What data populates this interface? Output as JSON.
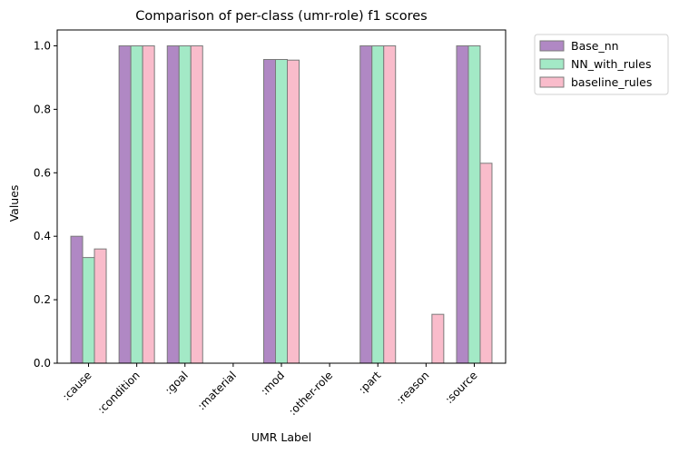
{
  "chart_data": {
    "type": "bar",
    "title": "Comparison of per-class (umr-role) f1 scores",
    "xlabel": "UMR Label",
    "ylabel": "Values",
    "ylim": [
      0,
      1.05
    ],
    "yticks": [
      "0.0",
      "0.2",
      "0.4",
      "0.6",
      "0.8",
      "1.0"
    ],
    "categories": [
      ":cause",
      ":condition",
      ":goal",
      ":material",
      ":mod",
      ":other-role",
      ":part",
      ":reason",
      ":source"
    ],
    "series": [
      {
        "name": "Base_nn",
        "color": "#b088c4",
        "values": [
          0.4,
          1.0,
          1.0,
          0.0,
          0.957,
          0.0,
          1.0,
          0.0,
          1.0
        ]
      },
      {
        "name": "NN_with_rules",
        "color": "#a3e9c6",
        "values": [
          0.333,
          1.0,
          1.0,
          0.0,
          0.957,
          0.0,
          1.0,
          0.0,
          1.0
        ]
      },
      {
        "name": "baseline_rules",
        "color": "#f9bccb",
        "values": [
          0.36,
          1.0,
          1.0,
          0.0,
          0.955,
          0.0,
          1.0,
          0.154,
          0.63
        ]
      }
    ],
    "legend_position": "outside-top-right",
    "grid": false
  }
}
